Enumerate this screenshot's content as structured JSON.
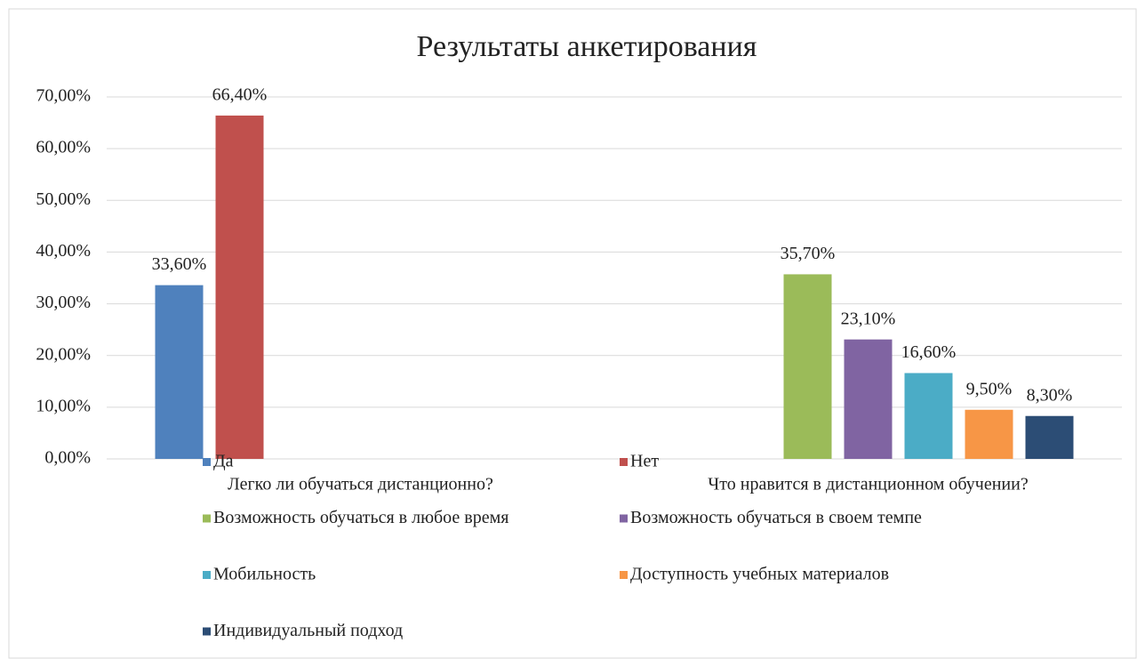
{
  "chart_data": {
    "type": "bar",
    "title": "Результаты анкетирования",
    "categories": [
      "Легко ли обучаться дистанционно?",
      "Что нравится в дистанционном обучении?"
    ],
    "series": [
      {
        "name": "Да",
        "color": "#4f81bd",
        "values": [
          33.6,
          null
        ],
        "value_labels": [
          "33,60%",
          null
        ]
      },
      {
        "name": "Нет",
        "color": "#c0504d",
        "values": [
          66.4,
          null
        ],
        "value_labels": [
          "66,40%",
          null
        ]
      },
      {
        "name": "Возможность обучаться в любое время",
        "color": "#9bbb59",
        "values": [
          null,
          35.7
        ],
        "value_labels": [
          null,
          "35,70%"
        ]
      },
      {
        "name": "Возможность обучаться в своем темпе",
        "color": "#8064a2",
        "values": [
          null,
          23.1
        ],
        "value_labels": [
          null,
          "23,10%"
        ]
      },
      {
        "name": "Мобильность",
        "color": "#4bacc6",
        "values": [
          null,
          16.6
        ],
        "value_labels": [
          null,
          "16,60%"
        ]
      },
      {
        "name": "Доступность учебных материалов",
        "color": "#f79646",
        "values": [
          null,
          9.5
        ],
        "value_labels": [
          null,
          "9,50%"
        ]
      },
      {
        "name": "Индивидуальный подход",
        "color": "#2c4d75",
        "values": [
          null,
          8.3
        ],
        "value_labels": [
          null,
          "8,30%"
        ]
      }
    ],
    "ylim": [
      0,
      70
    ],
    "yticks": [
      {
        "value": 0,
        "label": "0,00%"
      },
      {
        "value": 10,
        "label": "10,00%"
      },
      {
        "value": 20,
        "label": "20,00%"
      },
      {
        "value": 30,
        "label": "30,00%"
      },
      {
        "value": 40,
        "label": "40,00%"
      },
      {
        "value": 50,
        "label": "50,00%"
      },
      {
        "value": 60,
        "label": "60,00%"
      },
      {
        "value": 70,
        "label": "70,00%"
      }
    ],
    "grid": true
  }
}
